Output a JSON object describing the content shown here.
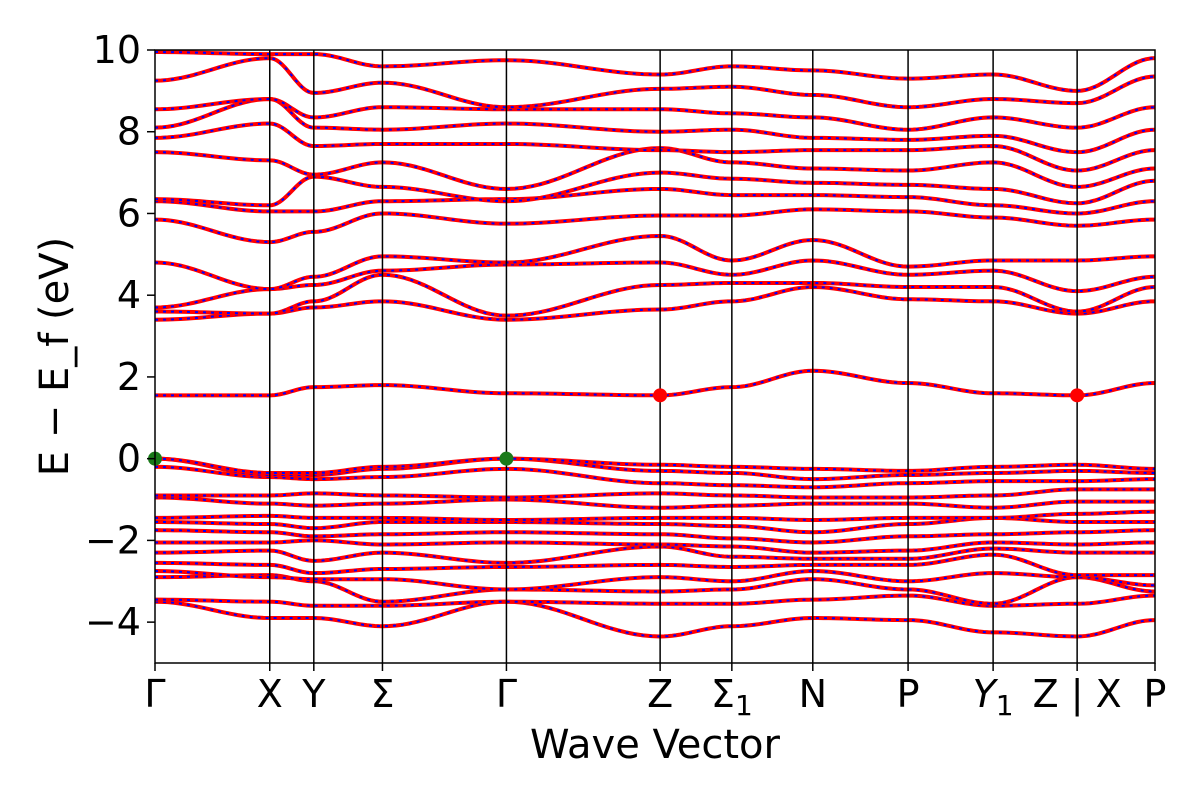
{
  "chart_data": {
    "type": "line",
    "title": "",
    "xlabel": "Wave Vector",
    "ylabel": "E − E_f (eV)",
    "ylim": [
      -5,
      10
    ],
    "yticks": [
      -4,
      -2,
      0,
      2,
      4,
      6,
      8,
      10
    ],
    "ytick_labels": [
      "−4",
      "−2",
      "0",
      "2",
      "4",
      "6",
      "8",
      "10"
    ],
    "grid": false,
    "legend": "none",
    "line_colors": {
      "dft": "#ff0000",
      "fit": "#0000ff"
    },
    "marker_colors": {
      "vbm": "#1a7a1a",
      "cbm": "#ff0000"
    },
    "kpoint_labels": [
      "Γ",
      "X",
      "Y",
      "Σ",
      "Γ",
      "Z",
      "Σ1",
      "N",
      "P",
      "Y1",
      "Z | X",
      "P"
    ],
    "kpoint_positions": [
      0,
      1.12,
      1.55,
      2.22,
      3.43,
      4.93,
      5.63,
      6.42,
      7.35,
      8.18,
      9.0,
      9.76
    ],
    "xlim": [
      0,
      9.76
    ],
    "markers": [
      {
        "kind": "vbm",
        "x": 0,
        "y": 0.0
      },
      {
        "kind": "vbm",
        "x": 3.43,
        "y": 0.0
      },
      {
        "kind": "cbm",
        "x": 4.93,
        "y": 1.55
      },
      {
        "kind": "cbm",
        "x": 9.0,
        "y": 1.55
      }
    ],
    "bands": [
      [
        -3.5,
        -3.9,
        -3.9,
        -4.1,
        -3.5,
        -4.35,
        -4.1,
        -3.9,
        -3.95,
        -4.25,
        -4.35,
        -3.95
      ],
      [
        -3.45,
        -3.5,
        -3.6,
        -3.6,
        -3.5,
        -3.55,
        -3.55,
        -3.45,
        -3.35,
        -3.6,
        -3.55,
        -3.35
      ],
      [
        -2.9,
        -2.85,
        -3.0,
        -3.5,
        -3.2,
        -3.25,
        -3.2,
        -2.95,
        -3.2,
        -3.55,
        -2.9,
        -3.25
      ],
      [
        -2.75,
        -2.9,
        -2.95,
        -2.95,
        -3.2,
        -2.9,
        -3.0,
        -2.75,
        -3.0,
        -2.8,
        -2.9,
        -3.1
      ],
      [
        -2.55,
        -2.6,
        -2.8,
        -2.7,
        -2.65,
        -2.6,
        -2.65,
        -2.6,
        -2.6,
        -2.35,
        -2.85,
        -2.85
      ],
      [
        -2.3,
        -2.25,
        -2.5,
        -2.3,
        -2.55,
        -2.15,
        -2.4,
        -2.45,
        -2.45,
        -2.2,
        -2.3,
        -2.3
      ],
      [
        -2.05,
        -2.05,
        -2.0,
        -2.1,
        -2.05,
        -2.1,
        -2.15,
        -2.3,
        -2.25,
        -2.05,
        -2.1,
        -2.05
      ],
      [
        -1.75,
        -1.8,
        -1.9,
        -1.85,
        -1.8,
        -1.85,
        -1.95,
        -2.05,
        -1.9,
        -1.85,
        -1.8,
        -1.75
      ],
      [
        -1.55,
        -1.6,
        -1.7,
        -1.55,
        -1.55,
        -1.6,
        -1.65,
        -1.8,
        -1.6,
        -1.45,
        -1.55,
        -1.55
      ],
      [
        -1.45,
        -1.4,
        -1.45,
        -1.45,
        -1.5,
        -1.45,
        -1.45,
        -1.5,
        -1.45,
        -1.45,
        -1.35,
        -1.3
      ],
      [
        -0.95,
        -1.1,
        -1.15,
        -1.1,
        -1.0,
        -1.2,
        -1.15,
        -1.1,
        -1.1,
        -1.2,
        -1.05,
        -1.05
      ],
      [
        -0.9,
        -0.9,
        -0.85,
        -0.9,
        -0.95,
        -0.85,
        -0.9,
        -0.95,
        -0.95,
        -0.9,
        -0.75,
        -0.75
      ],
      [
        -0.2,
        -0.45,
        -0.5,
        -0.45,
        -0.25,
        -0.6,
        -0.65,
        -0.7,
        -0.6,
        -0.55,
        -0.55,
        -0.5
      ],
      [
        0.0,
        -0.4,
        -0.4,
        -0.25,
        0.0,
        -0.3,
        -0.35,
        -0.5,
        -0.4,
        -0.35,
        -0.3,
        -0.35
      ],
      [
        0.0,
        -0.35,
        -0.35,
        -0.2,
        0.0,
        -0.15,
        -0.2,
        -0.25,
        -0.3,
        -0.2,
        -0.15,
        -0.25
      ],
      [
        1.55,
        1.55,
        1.75,
        1.8,
        1.6,
        1.55,
        1.75,
        2.15,
        1.85,
        1.6,
        1.55,
        1.85
      ],
      [
        3.4,
        3.55,
        3.7,
        3.85,
        3.4,
        3.65,
        3.85,
        4.2,
        3.9,
        3.85,
        3.55,
        3.85
      ],
      [
        3.6,
        3.55,
        3.85,
        4.5,
        3.5,
        4.25,
        4.3,
        4.3,
        4.2,
        4.2,
        3.6,
        4.2
      ],
      [
        3.7,
        4.15,
        4.25,
        4.6,
        4.75,
        4.8,
        4.5,
        4.85,
        4.5,
        4.6,
        4.1,
        4.45
      ],
      [
        4.8,
        4.15,
        4.45,
        4.95,
        4.8,
        5.45,
        4.85,
        5.35,
        4.7,
        4.85,
        4.85,
        4.95
      ],
      [
        5.85,
        5.3,
        5.55,
        6.0,
        5.75,
        5.95,
        5.95,
        6.1,
        6.05,
        5.9,
        5.7,
        5.85
      ],
      [
        6.3,
        6.05,
        6.05,
        6.3,
        6.35,
        6.6,
        6.45,
        6.45,
        6.4,
        6.2,
        6.0,
        6.3
      ],
      [
        6.35,
        6.2,
        6.9,
        6.65,
        6.3,
        7.0,
        6.85,
        6.75,
        6.7,
        6.6,
        6.25,
        6.8
      ],
      [
        7.5,
        7.3,
        6.95,
        7.25,
        6.6,
        7.6,
        7.25,
        7.1,
        7.05,
        7.25,
        6.65,
        7.1
      ],
      [
        7.85,
        8.2,
        7.65,
        7.7,
        7.7,
        7.55,
        7.5,
        7.55,
        7.55,
        7.65,
        7.05,
        7.55
      ],
      [
        8.1,
        8.8,
        8.1,
        8.05,
        8.2,
        8.0,
        8.05,
        7.85,
        7.8,
        7.9,
        7.5,
        8.05
      ],
      [
        8.55,
        8.8,
        8.35,
        8.6,
        8.55,
        8.55,
        8.45,
        8.35,
        8.05,
        8.35,
        8.1,
        8.6
      ],
      [
        9.25,
        9.8,
        8.95,
        9.2,
        8.6,
        9.05,
        9.1,
        8.9,
        8.6,
        8.8,
        8.7,
        9.35
      ],
      [
        9.95,
        9.9,
        9.9,
        9.6,
        9.75,
        9.4,
        9.6,
        9.5,
        9.3,
        9.4,
        9.0,
        9.8
      ]
    ]
  }
}
